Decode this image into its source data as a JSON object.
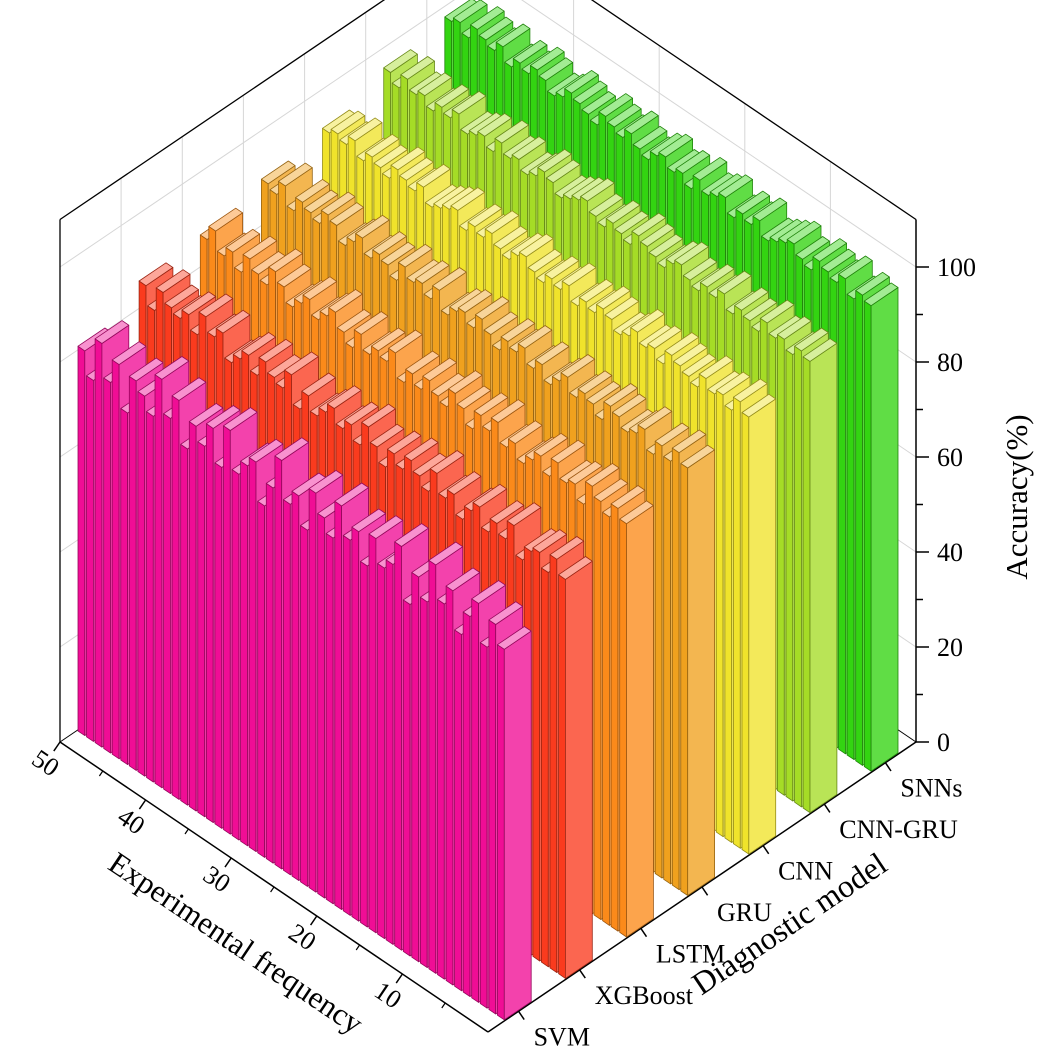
{
  "chart_data": {
    "type": "bar",
    "projection": "3d",
    "title": "",
    "xlabel": "Diagnostic model",
    "ylabel": "Experimental frequency",
    "zlabel": "Accuracy(%)",
    "x_categories": [
      "SVM",
      "XGBoost",
      "LSTM",
      "GRU",
      "CNN",
      "CNN-GRU",
      "SNNs"
    ],
    "y_label_ticks": [
      10,
      20,
      30,
      40,
      50
    ],
    "y_minor_ticks": [
      5,
      15,
      25,
      35,
      45
    ],
    "y_range": [
      0,
      50
    ],
    "zlim": [
      0,
      100
    ],
    "z_major_ticks": [
      0,
      20,
      40,
      60,
      80,
      100
    ],
    "z_minor_step": 10,
    "grid": true,
    "legend": "none",
    "series": [
      {
        "name": "SVM",
        "color": "#F00D95",
        "values": [
          78,
          82,
          76,
          84,
          80,
          75,
          83,
          79,
          86,
          77,
          81,
          74,
          85,
          80,
          78,
          83,
          76,
          82,
          79,
          85,
          77,
          80,
          84,
          75,
          81,
          78,
          86,
          79,
          74,
          82,
          80,
          77,
          85,
          76,
          83,
          78,
          81,
          75,
          84,
          79,
          86,
          77,
          80,
          82,
          74,
          83,
          78,
          85,
          76,
          81
        ]
      },
      {
        "name": "XGBoost",
        "color": "#FA3B1E",
        "values": [
          84,
          87,
          83,
          86,
          85,
          82,
          88,
          84,
          86,
          83,
          87,
          85,
          82,
          86,
          84,
          88,
          83,
          85,
          87,
          84,
          86,
          82,
          85,
          88,
          83,
          86,
          84,
          87,
          85,
          83,
          86,
          82,
          88,
          84,
          85,
          87,
          83,
          86,
          84,
          82,
          87,
          85,
          88,
          83,
          86,
          84,
          85,
          87,
          82,
          86
        ]
      },
      {
        "name": "LSTM",
        "color": "#FB8A1A",
        "values": [
          87,
          89,
          86,
          88,
          90,
          85,
          88,
          87,
          90,
          86,
          89,
          87,
          85,
          88,
          86,
          90,
          87,
          89,
          85,
          88,
          90,
          86,
          87,
          89,
          86,
          88,
          85,
          90,
          87,
          88,
          86,
          89,
          85,
          87,
          90,
          88,
          86,
          89,
          87,
          85,
          88,
          90,
          86,
          87,
          89,
          85,
          88,
          86,
          90,
          87
        ]
      },
      {
        "name": "GRU",
        "color": "#F0A11E",
        "values": [
          90,
          92,
          89,
          91,
          88,
          92,
          90,
          89,
          91,
          92,
          88,
          90,
          91,
          89,
          92,
          90,
          88,
          91,
          89,
          92,
          90,
          91,
          88,
          90,
          92,
          89,
          91,
          90,
          88,
          92,
          89,
          91,
          90,
          92,
          88,
          90,
          91,
          89,
          92,
          90,
          88,
          91,
          92,
          89,
          90,
          91,
          88,
          92,
          89,
          90
        ]
      },
      {
        "name": "CNN",
        "color": "#F0E32B",
        "values": [
          92,
          94,
          91,
          93,
          92,
          94,
          91,
          92,
          93,
          94,
          91,
          93,
          92,
          94,
          92,
          91,
          93,
          94,
          92,
          93,
          91,
          94,
          92,
          93,
          91,
          92,
          94,
          93,
          91,
          92,
          94,
          92,
          93,
          91,
          94,
          93,
          92,
          91,
          94,
          92,
          93,
          94,
          91,
          92,
          93,
          91,
          94,
          92,
          93,
          92
        ]
      },
      {
        "name": "CNN-GRU",
        "color": "#A5DC26",
        "values": [
          95,
          96,
          94,
          96,
          95,
          97,
          94,
          95,
          96,
          94,
          97,
          95,
          96,
          94,
          95,
          97,
          96,
          94,
          95,
          96,
          97,
          94,
          95,
          96,
          94,
          95,
          97,
          96,
          95,
          94,
          96,
          97,
          95,
          94,
          96,
          95,
          97,
          94,
          96,
          95,
          94,
          97,
          95,
          96,
          94,
          96,
          95,
          97,
          94,
          96
        ]
      },
      {
        "name": "SNNs",
        "color": "#33D411",
        "values": [
          98,
          99,
          97,
          100,
          98,
          99,
          100,
          97,
          98,
          100,
          99,
          98,
          97,
          100,
          98,
          99,
          97,
          100,
          99,
          98,
          100,
          97,
          99,
          98,
          100,
          99,
          97,
          98,
          100,
          98,
          99,
          100,
          97,
          98,
          99,
          100,
          98,
          97,
          99,
          100,
          98,
          99,
          97,
          100,
          98,
          99,
          100,
          97,
          99,
          98
        ]
      }
    ]
  }
}
